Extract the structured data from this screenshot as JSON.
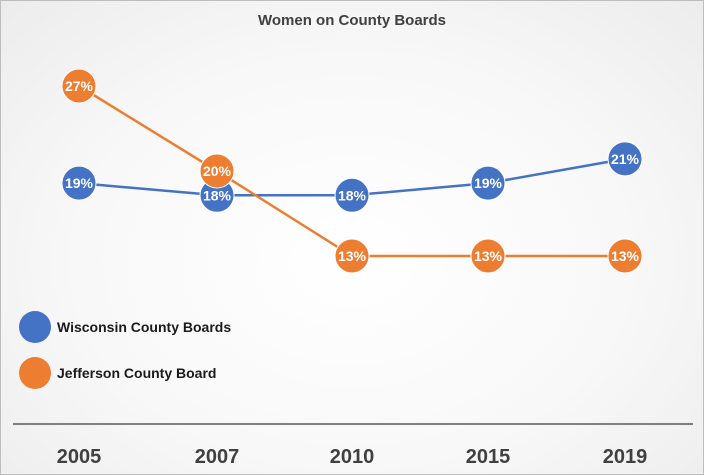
{
  "chart_data": {
    "type": "line",
    "title": "Women on County Boards",
    "xlabel": "",
    "ylabel": "",
    "categories": [
      "2005",
      "2007",
      "2010",
      "2015",
      "2019"
    ],
    "ylim": [
      10,
      30
    ],
    "grid": false,
    "legend_position": "left",
    "series": [
      {
        "name": "Wisconsin County Boards",
        "color": "#4472c4",
        "values": [
          19,
          18,
          18,
          19,
          21
        ],
        "labels": [
          "19%",
          "18%",
          "18%",
          "19%",
          "21%"
        ]
      },
      {
        "name": "Jefferson County Board",
        "color": "#ed7d31",
        "values": [
          27,
          20,
          13,
          13,
          13
        ],
        "labels": [
          "27%",
          "20%",
          "13%",
          "13%",
          "13%"
        ]
      }
    ]
  }
}
